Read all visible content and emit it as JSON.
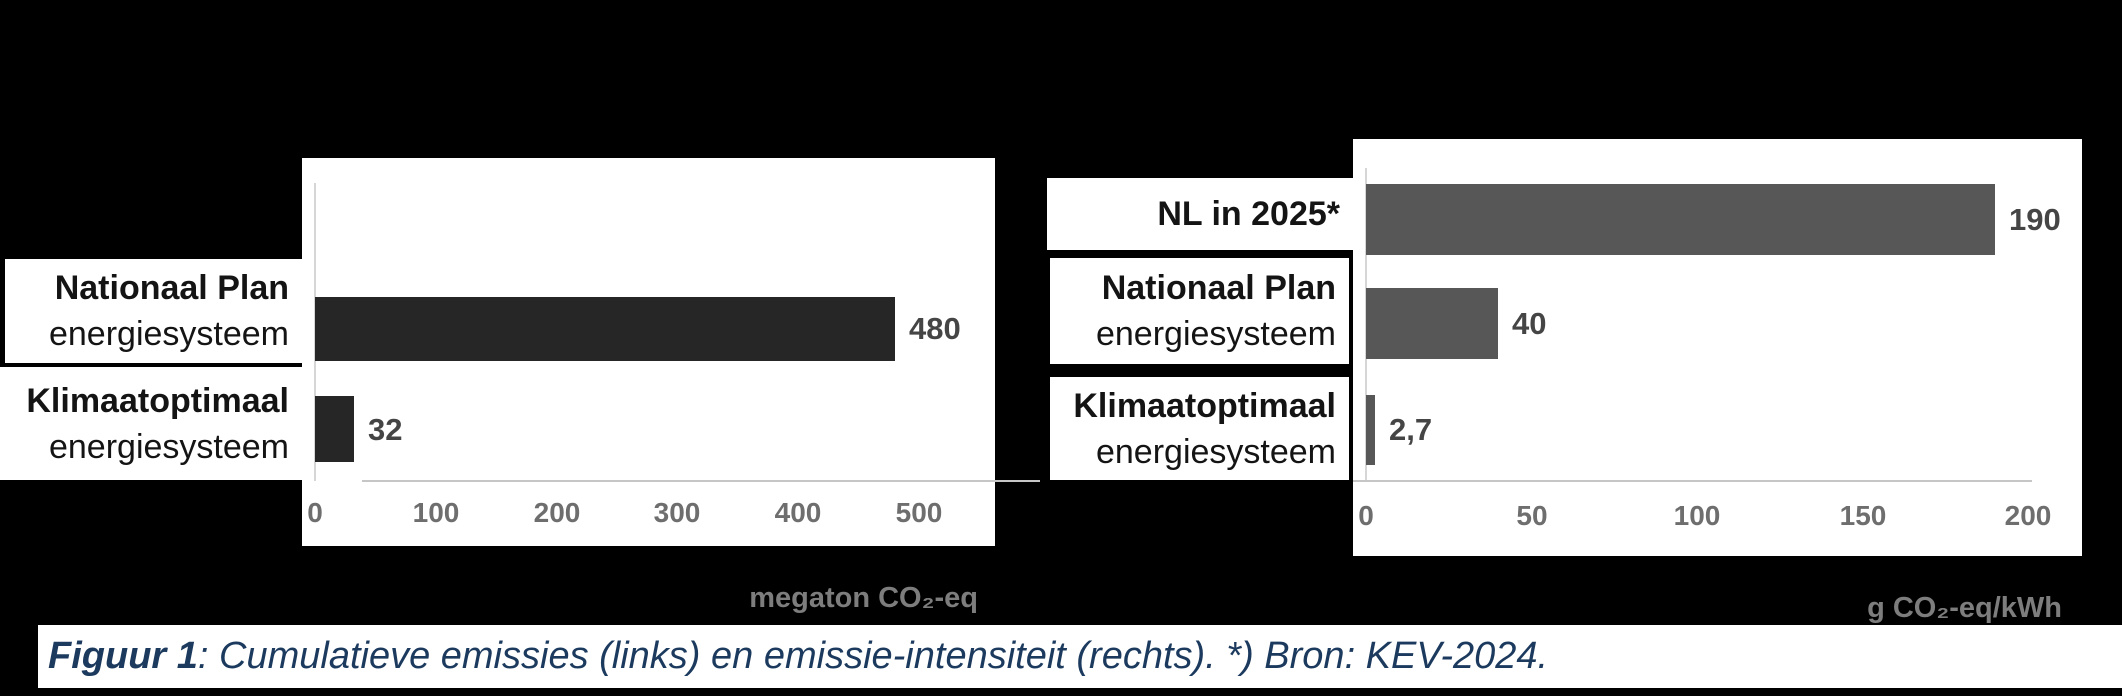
{
  "caption": {
    "prefix": "Figuur 1",
    "rest": ": Cumulatieve emissies (links) en emissie-intensiteit (rechts). *) Bron: KEV-2024."
  },
  "colors": {
    "background": "#000000",
    "panel": "#ffffff",
    "bar_left_chart": "#262626",
    "bar_right_chart": "#575757",
    "value_label": "#454545",
    "tick_label": "#6e6e6e",
    "axis_line": "#c6c6c6",
    "unit_label": "#7d7d7d",
    "caption_text": "#1b3a5e",
    "category_text": "#141414"
  },
  "chart_data": [
    {
      "type": "bar",
      "orientation": "horizontal",
      "title": "",
      "categories": [
        "Nationaal Plan energiesysteem",
        "Klimaatoptimaal energiesysteem"
      ],
      "category_lines": [
        [
          "Nationaal Plan",
          "energiesysteem"
        ],
        [
          "Klimaatoptimaal",
          "energiesysteem"
        ]
      ],
      "values": [
        480,
        32
      ],
      "value_labels": [
        "480",
        "32"
      ],
      "xlabel": "megaton CO₂-eq",
      "xticks": [
        0,
        100,
        200,
        300,
        400,
        500
      ],
      "xlim": [
        0,
        560
      ],
      "bar_color": "#262626",
      "grid": false,
      "legend": false
    },
    {
      "type": "bar",
      "orientation": "horizontal",
      "title": "",
      "categories": [
        "NL in 2025*",
        "Nationaal Plan energiesysteem",
        "Klimaatoptimaal energiesysteem"
      ],
      "category_lines": [
        [
          "NL in 2025*"
        ],
        [
          "Nationaal Plan",
          "energiesysteem"
        ],
        [
          "Klimaatoptimaal",
          "energiesysteem"
        ]
      ],
      "values": [
        190,
        40,
        2.7
      ],
      "value_labels": [
        "190",
        "40",
        "2,7"
      ],
      "xlabel": "g CO₂-eq/kWh",
      "xticks": [
        0,
        50,
        100,
        150,
        200
      ],
      "xlim": [
        0,
        215
      ],
      "bar_color": "#575757",
      "grid": false,
      "legend": false
    }
  ]
}
